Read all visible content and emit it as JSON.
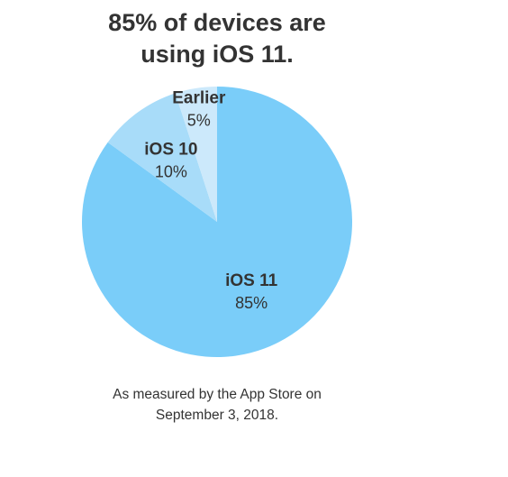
{
  "chart_data": {
    "type": "pie",
    "title_lines": [
      "85% of devices are",
      "using iOS 11."
    ],
    "slices": [
      {
        "label": "iOS 11",
        "value": 85,
        "value_label": "85%",
        "color": "#7acdf9"
      },
      {
        "label": "iOS 10",
        "value": 10,
        "value_label": "10%",
        "color": "#a8dcf9"
      },
      {
        "label": "Earlier",
        "value": 5,
        "value_label": "5%",
        "color": "#cce9fb"
      }
    ],
    "footnote_lines": [
      "As measured by the App Store on",
      "September 3, 2018."
    ]
  }
}
